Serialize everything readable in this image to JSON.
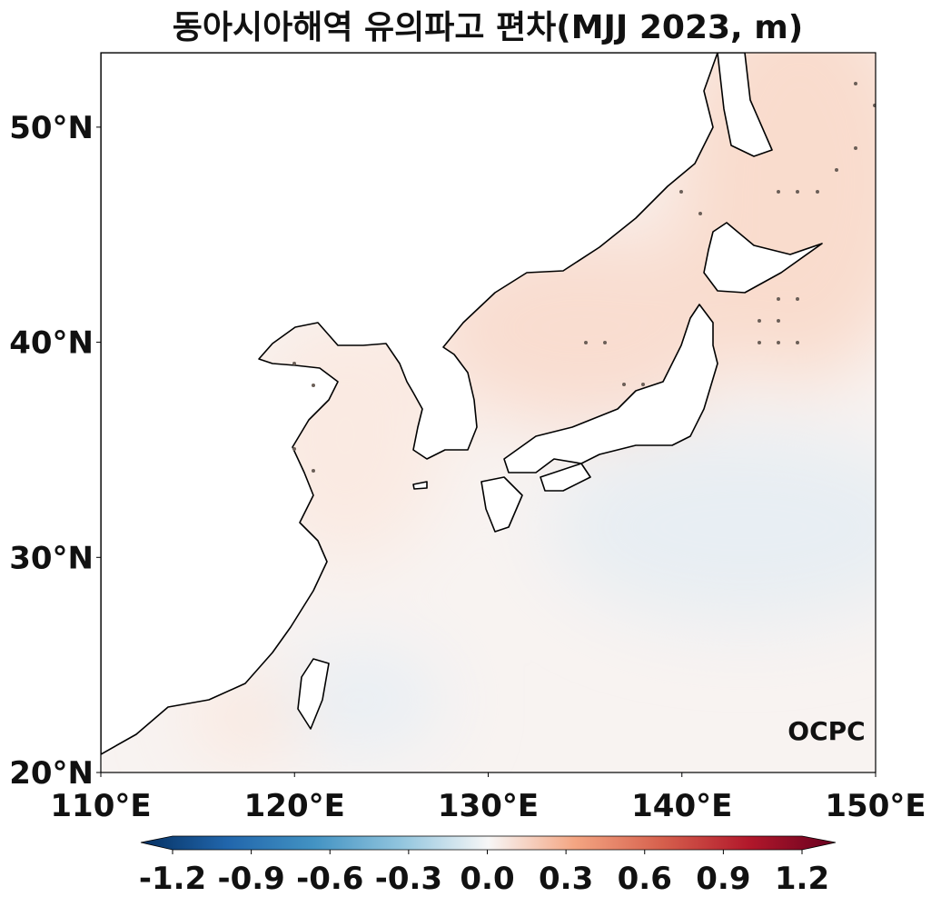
{
  "title": "동아시아해역 유의파고 편차(MJJ 2023, m)",
  "map": {
    "xlim": [
      110,
      150
    ],
    "ylim": [
      20,
      53.46
    ],
    "xticks": [
      {
        "value": 110,
        "label": "110°E"
      },
      {
        "value": 120,
        "label": "120°E"
      },
      {
        "value": 130,
        "label": "130°E"
      },
      {
        "value": 140,
        "label": "140°E"
      },
      {
        "value": 150,
        "label": "150°E"
      }
    ],
    "yticks": [
      {
        "value": 20,
        "label": "20°N"
      },
      {
        "value": 30,
        "label": "30°N"
      },
      {
        "value": 40,
        "label": "40°N"
      },
      {
        "value": 50,
        "label": "50°N"
      }
    ]
  },
  "colorbar": {
    "lim": [
      -1.2,
      1.2
    ],
    "ticks": [
      -1.2,
      -0.9,
      -0.6,
      -0.3,
      {
        "value": 0,
        "label": "0.0"
      },
      0.3,
      0.6,
      0.9,
      1.2
    ]
  },
  "logo": "OCPC"
}
